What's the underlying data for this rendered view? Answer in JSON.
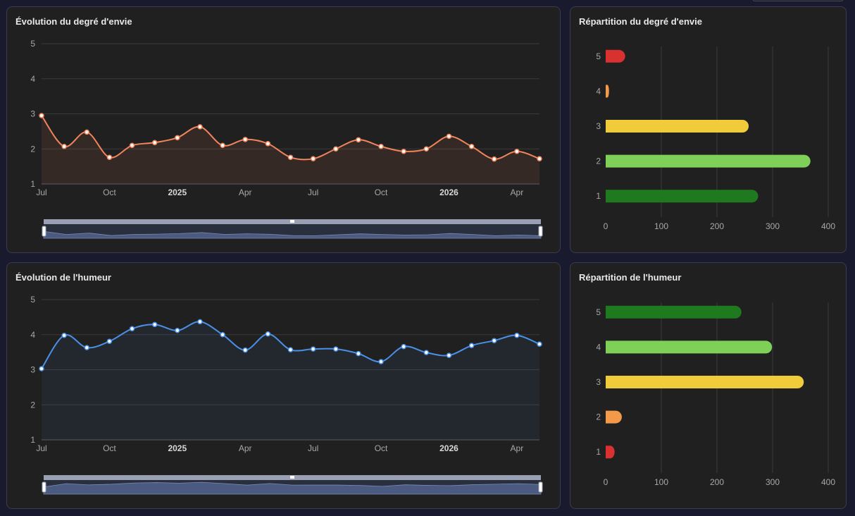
{
  "colors": {
    "background": "#1a1a2e",
    "card": "#202020",
    "envie_line": "#f0845a",
    "humeur_line": "#4a90e8",
    "level_5_envie": "#d93030",
    "level_4_envie": "#f29a4a",
    "level_3": "#f0cc3a",
    "level_2_envie": "#7ed058",
    "level_1_envie": "#1f7a1f"
  },
  "cards": {
    "envie_evolution": {
      "title": "Évolution du degré d'envie"
    },
    "envie_distribution": {
      "title": "Répartition du degré d'envie"
    },
    "humeur_evolution": {
      "title": "Évolution de l'humeur"
    },
    "humeur_distribution": {
      "title": "Répartition de l'humeur"
    }
  },
  "chart_data": [
    {
      "type": "line",
      "title": "Évolution du degré d'envie",
      "x_tick_labels": [
        "Jul",
        "Oct",
        "2025",
        "Apr",
        "Jul",
        "Oct",
        "2026",
        "Apr"
      ],
      "x": [
        "2024-07",
        "2024-08",
        "2024-09",
        "2024-10",
        "2024-11",
        "2024-12",
        "2025-01",
        "2025-02",
        "2025-03",
        "2025-04",
        "2025-05",
        "2025-06",
        "2025-07",
        "2025-08",
        "2025-09",
        "2025-10",
        "2025-11",
        "2025-12",
        "2026-01",
        "2026-02",
        "2026-03",
        "2026-04",
        "2026-05"
      ],
      "values": [
        2.95,
        2.07,
        2.48,
        1.76,
        2.1,
        2.18,
        2.32,
        2.63,
        2.1,
        2.27,
        2.15,
        1.76,
        1.72,
        2.0,
        2.26,
        2.07,
        1.93,
        2.0,
        2.36,
        2.07,
        1.71,
        1.93,
        1.72
      ],
      "ylim": [
        1,
        5
      ],
      "y_ticks": [
        1,
        2,
        3,
        4,
        5
      ],
      "color": "#f0845a",
      "grid": true,
      "has_zoom_slider": true
    },
    {
      "type": "bar",
      "orientation": "horizontal",
      "title": "Répartition du degré d'envie",
      "categories": [
        "5",
        "4",
        "3",
        "2",
        "1"
      ],
      "values": [
        35,
        6,
        257,
        368,
        274
      ],
      "colors": [
        "#d93030",
        "#f29a4a",
        "#f0cc3a",
        "#7ed058",
        "#1f7a1f"
      ],
      "x_ticks": [
        0,
        100,
        200,
        300,
        400
      ],
      "xlim": [
        0,
        400
      ],
      "grid": true
    },
    {
      "type": "line",
      "title": "Évolution de l'humeur",
      "x_tick_labels": [
        "Jul",
        "Oct",
        "2025",
        "Apr",
        "Jul",
        "Oct",
        "2026",
        "Apr"
      ],
      "x": [
        "2024-07",
        "2024-08",
        "2024-09",
        "2024-10",
        "2024-11",
        "2024-12",
        "2025-01",
        "2025-02",
        "2025-03",
        "2025-04",
        "2025-05",
        "2025-06",
        "2025-07",
        "2025-08",
        "2025-09",
        "2025-10",
        "2025-11",
        "2025-12",
        "2026-01",
        "2026-02",
        "2026-03",
        "2026-04",
        "2026-05"
      ],
      "values": [
        3.03,
        3.98,
        3.63,
        3.81,
        4.17,
        4.29,
        4.12,
        4.37,
        4.0,
        3.56,
        4.02,
        3.57,
        3.59,
        3.59,
        3.46,
        3.23,
        3.66,
        3.49,
        3.41,
        3.69,
        3.83,
        3.98,
        3.73
      ],
      "ylim": [
        1,
        5
      ],
      "y_ticks": [
        1,
        2,
        3,
        4,
        5
      ],
      "color": "#4a90e8",
      "grid": true,
      "has_zoom_slider": true
    },
    {
      "type": "bar",
      "orientation": "horizontal",
      "title": "Répartition de l'humeur",
      "categories": [
        "5",
        "4",
        "3",
        "2",
        "1"
      ],
      "values": [
        244,
        299,
        356,
        29,
        16
      ],
      "colors": [
        "#1f7a1f",
        "#7ed058",
        "#f0cc3a",
        "#f29a4a",
        "#d93030"
      ],
      "x_ticks": [
        0,
        100,
        200,
        300,
        400
      ],
      "xlim": [
        0,
        400
      ],
      "grid": true
    }
  ]
}
